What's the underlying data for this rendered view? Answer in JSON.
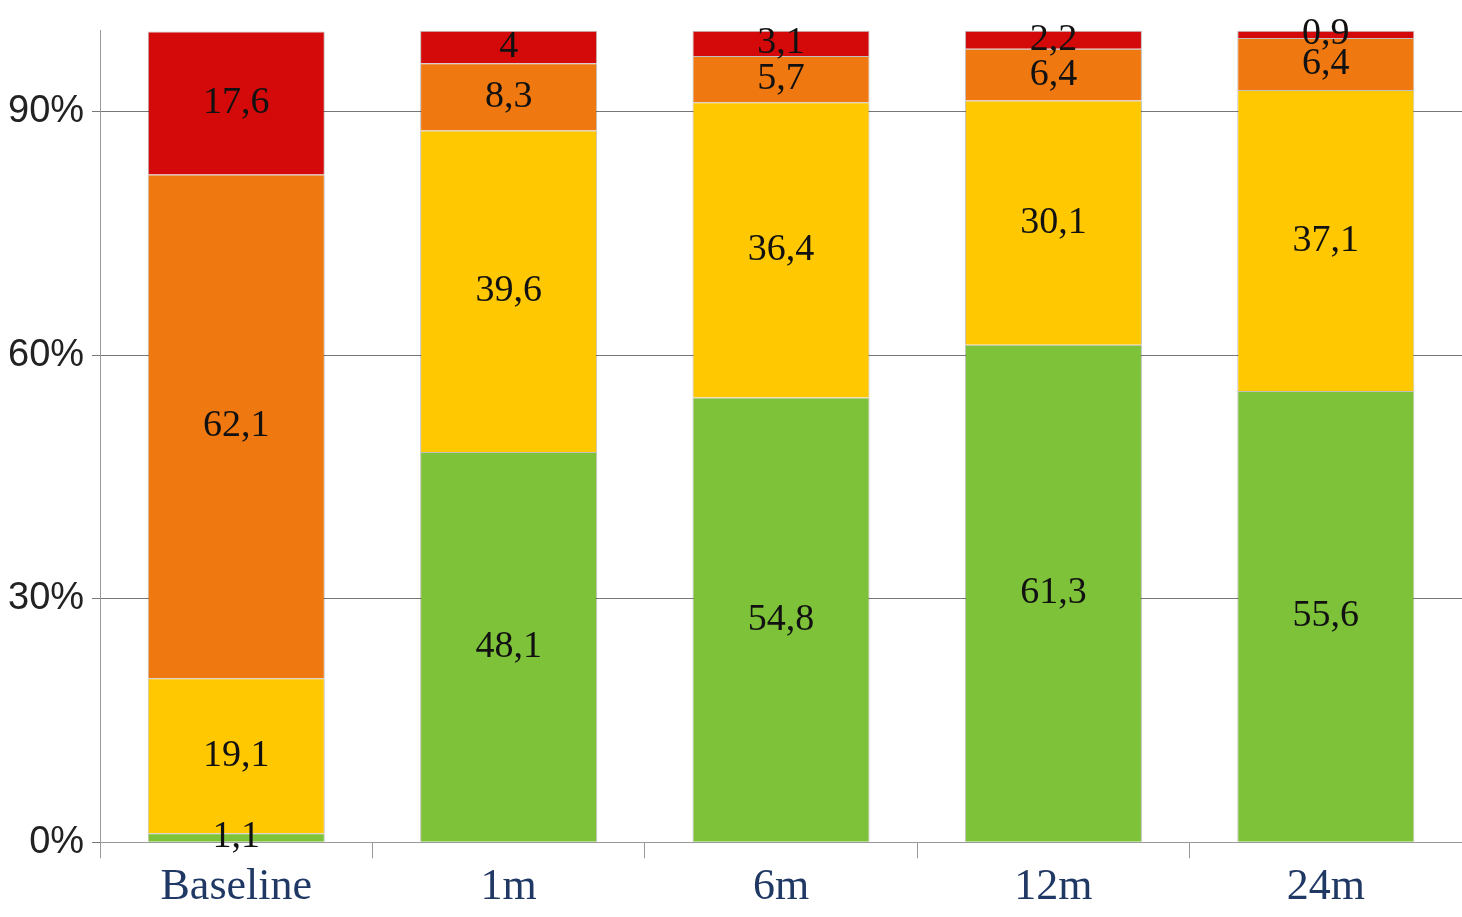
{
  "chart_data": {
    "type": "bar",
    "stacked": true,
    "categories": [
      "Baseline",
      "1m",
      "6m",
      "12m",
      "24m"
    ],
    "series": [
      {
        "color": "#7ec23a",
        "values": [
          1.1,
          48.1,
          54.8,
          61.3,
          55.6
        ],
        "value_labels": [
          "1,1",
          "48,1",
          "54,8",
          "61,3",
          "55,6"
        ]
      },
      {
        "color": "#ffc800",
        "values": [
          19.1,
          39.6,
          36.4,
          30.1,
          37.1
        ],
        "value_labels": [
          "19,1",
          "39,6",
          "36,4",
          "30,1",
          "37,1"
        ]
      },
      {
        "color": "#f07810",
        "values": [
          62.1,
          8.3,
          5.7,
          6.4,
          6.4
        ],
        "value_labels": [
          "62,1",
          "8,3",
          "5,7",
          "6,4",
          "6,4"
        ]
      },
      {
        "color": "#d40a0a",
        "values": [
          17.6,
          4,
          3.1,
          2.2,
          0.9
        ],
        "value_labels": [
          "17,6",
          "4",
          "3,1",
          "2,2",
          "0,9"
        ]
      }
    ],
    "ylim": [
      0,
      100
    ],
    "yticks": [
      {
        "value": 0,
        "label": "0%"
      },
      {
        "value": 30,
        "label": "30%"
      },
      {
        "value": 60,
        "label": "60%"
      },
      {
        "value": 90,
        "label": "90%"
      }
    ],
    "grid": "y",
    "legend": false
  }
}
